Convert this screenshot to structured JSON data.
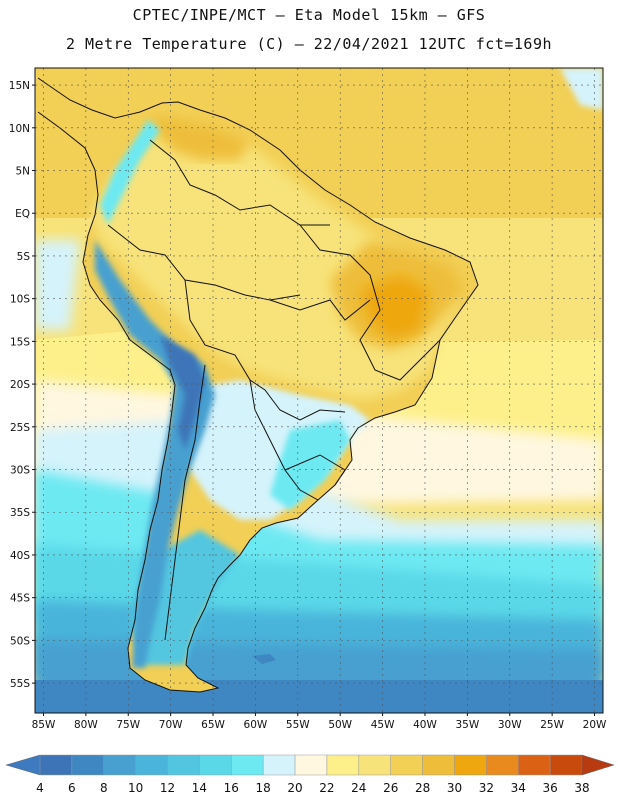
{
  "header": {
    "line1": "CPTEC/INPE/MCT –  Eta Model 15km – GFS",
    "line2": "2 Metre Temperature (C) – 22/04/2021 12UTC fct=169h"
  },
  "map": {
    "lon_range": [
      -86,
      -19
    ],
    "lat_range": [
      -58.5,
      17
    ],
    "lat_labels": [
      {
        "lat": 15,
        "text": "15N"
      },
      {
        "lat": 10,
        "text": "10N"
      },
      {
        "lat": 5,
        "text": "5N"
      },
      {
        "lat": 0,
        "text": "EQ"
      },
      {
        "lat": -5,
        "text": "5S"
      },
      {
        "lat": -10,
        "text": "10S"
      },
      {
        "lat": -15,
        "text": "15S"
      },
      {
        "lat": -20,
        "text": "20S"
      },
      {
        "lat": -25,
        "text": "25S"
      },
      {
        "lat": -30,
        "text": "30S"
      },
      {
        "lat": -35,
        "text": "35S"
      },
      {
        "lat": -40,
        "text": "40S"
      },
      {
        "lat": -45,
        "text": "45S"
      },
      {
        "lat": -50,
        "text": "50S"
      },
      {
        "lat": -55,
        "text": "55S"
      }
    ],
    "lon_labels": [
      {
        "lon": -85,
        "text": "85W"
      },
      {
        "lon": -80,
        "text": "80W"
      },
      {
        "lon": -75,
        "text": "75W"
      },
      {
        "lon": -70,
        "text": "70W"
      },
      {
        "lon": -65,
        "text": "65W"
      },
      {
        "lon": -60,
        "text": "60W"
      },
      {
        "lon": -55,
        "text": "55W"
      },
      {
        "lon": -50,
        "text": "50W"
      },
      {
        "lon": -45,
        "text": "45W"
      },
      {
        "lon": -40,
        "text": "40W"
      },
      {
        "lon": -35,
        "text": "35W"
      },
      {
        "lon": -30,
        "text": "30W"
      },
      {
        "lon": -25,
        "text": "25W"
      },
      {
        "lon": -20,
        "text": "20W"
      }
    ]
  },
  "colorbar": {
    "labels": [
      "4",
      "6",
      "8",
      "10",
      "12",
      "14",
      "16",
      "18",
      "20",
      "22",
      "24",
      "26",
      "28",
      "30",
      "32",
      "34",
      "36",
      "38"
    ],
    "colors": {
      "under": "#3d7ac0",
      "over": "#b83a10",
      "bins": [
        "#3d74b8",
        "#3f87c3",
        "#47a0d0",
        "#4ab4da",
        "#52c6e0",
        "#5ad8e8",
        "#6de9f2",
        "#d5f3fb",
        "#fff7e0",
        "#fdf08a",
        "#f7e37a",
        "#f2cf55",
        "#eebe3a",
        "#eea70f",
        "#e88a1e",
        "#db6214",
        "#c84a0c"
      ]
    }
  }
}
